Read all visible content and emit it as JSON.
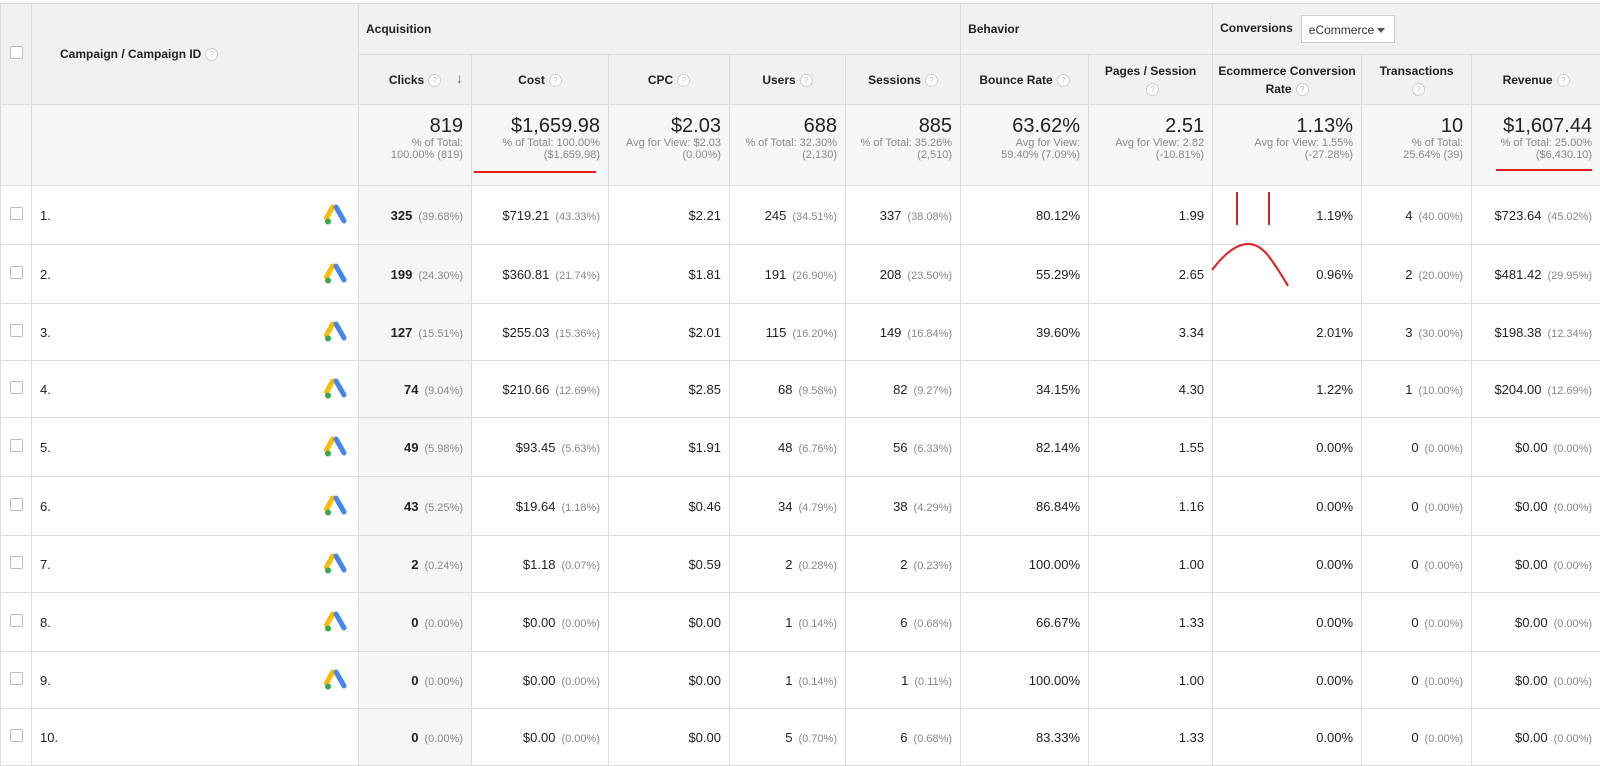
{
  "header": {
    "campaign_col": "Campaign / Campaign ID",
    "acquisition": "Acquisition",
    "behavior": "Behavior",
    "conversions": "Conversions",
    "conversion_select": "eCommerce",
    "help": "?",
    "columns": {
      "clicks": "Clicks",
      "cost": "Cost",
      "cpc": "CPC",
      "users": "Users",
      "sessions": "Sessions",
      "bounce": "Bounce Rate",
      "pages_line1": "Pages / Session",
      "ecr_line1": "Ecommerce Conversion",
      "ecr_line2": "Rate",
      "transactions": "Transactions",
      "revenue": "Revenue"
    }
  },
  "totals": {
    "clicks": {
      "big": "819",
      "sub1": "% of Total:",
      "sub2": "100.00% (819)"
    },
    "cost": {
      "big": "$1,659.98",
      "sub1": "% of Total: 100.00%",
      "sub2": "($1,659.98)"
    },
    "cpc": {
      "big": "$2.03",
      "sub1": "Avg for View: $2.03",
      "sub2": "(0.00%)"
    },
    "users": {
      "big": "688",
      "sub1": "% of Total: 32.30%",
      "sub2": "(2,130)"
    },
    "sessions": {
      "big": "885",
      "sub1": "% of Total: 35.26%",
      "sub2": "(2,510)"
    },
    "bounce": {
      "big": "63.62%",
      "sub1": "Avg for View:",
      "sub2": "59.40% (7.09%)"
    },
    "pages": {
      "big": "2.51",
      "sub1": "Avg for View: 2.82",
      "sub2": "(-10.81%)"
    },
    "ecr": {
      "big": "1.13%",
      "sub1": "Avg for View: 1.55%",
      "sub2": "(-27.28%)"
    },
    "transactions": {
      "big": "10",
      "sub1": "% of Total:",
      "sub2": "25.64% (39)"
    },
    "revenue": {
      "big": "$1,607.44",
      "sub1": "% of Total: 25.00%",
      "sub2": "($6,430.10)"
    }
  },
  "rows": [
    {
      "idx": "1.",
      "clicks": "325",
      "clicks_pct": "(39.68%)",
      "cost": "$719.21",
      "cost_pct": "(43.33%)",
      "cpc": "$2.21",
      "users": "245",
      "users_pct": "(34.51%)",
      "sessions": "337",
      "sessions_pct": "(38.08%)",
      "bounce": "80.12%",
      "pages": "1.99",
      "ecr": "1.19%",
      "trans": "4",
      "trans_pct": "(40.00%)",
      "rev": "$723.64",
      "rev_pct": "(45.02%)"
    },
    {
      "idx": "2.",
      "clicks": "199",
      "clicks_pct": "(24.30%)",
      "cost": "$360.81",
      "cost_pct": "(21.74%)",
      "cpc": "$1.81",
      "users": "191",
      "users_pct": "(26.90%)",
      "sessions": "208",
      "sessions_pct": "(23.50%)",
      "bounce": "55.29%",
      "pages": "2.65",
      "ecr": "0.96%",
      "trans": "2",
      "trans_pct": "(20.00%)",
      "rev": "$481.42",
      "rev_pct": "(29.95%)"
    },
    {
      "idx": "3.",
      "clicks": "127",
      "clicks_pct": "(15.51%)",
      "cost": "$255.03",
      "cost_pct": "(15.36%)",
      "cpc": "$2.01",
      "users": "115",
      "users_pct": "(16.20%)",
      "sessions": "149",
      "sessions_pct": "(16.84%)",
      "bounce": "39.60%",
      "pages": "3.34",
      "ecr": "2.01%",
      "trans": "3",
      "trans_pct": "(30.00%)",
      "rev": "$198.38",
      "rev_pct": "(12.34%)"
    },
    {
      "idx": "4.",
      "clicks": "74",
      "clicks_pct": "(9.04%)",
      "cost": "$210.66",
      "cost_pct": "(12.69%)",
      "cpc": "$2.85",
      "users": "68",
      "users_pct": "(9.58%)",
      "sessions": "82",
      "sessions_pct": "(9.27%)",
      "bounce": "34.15%",
      "pages": "4.30",
      "ecr": "1.22%",
      "trans": "1",
      "trans_pct": "(10.00%)",
      "rev": "$204.00",
      "rev_pct": "(12.69%)"
    },
    {
      "idx": "5.",
      "clicks": "49",
      "clicks_pct": "(5.98%)",
      "cost": "$93.45",
      "cost_pct": "(5.63%)",
      "cpc": "$1.91",
      "users": "48",
      "users_pct": "(6.76%)",
      "sessions": "56",
      "sessions_pct": "(6.33%)",
      "bounce": "82.14%",
      "pages": "1.55",
      "ecr": "0.00%",
      "trans": "0",
      "trans_pct": "(0.00%)",
      "rev": "$0.00",
      "rev_pct": "(0.00%)"
    },
    {
      "idx": "6.",
      "clicks": "43",
      "clicks_pct": "(5.25%)",
      "cost": "$19.64",
      "cost_pct": "(1.18%)",
      "cpc": "$0.46",
      "users": "34",
      "users_pct": "(4.79%)",
      "sessions": "38",
      "sessions_pct": "(4.29%)",
      "bounce": "86.84%",
      "pages": "1.16",
      "ecr": "0.00%",
      "trans": "0",
      "trans_pct": "(0.00%)",
      "rev": "$0.00",
      "rev_pct": "(0.00%)"
    },
    {
      "idx": "7.",
      "clicks": "2",
      "clicks_pct": "(0.24%)",
      "cost": "$1.18",
      "cost_pct": "(0.07%)",
      "cpc": "$0.59",
      "users": "2",
      "users_pct": "(0.28%)",
      "sessions": "2",
      "sessions_pct": "(0.23%)",
      "bounce": "100.00%",
      "pages": "1.00",
      "ecr": "0.00%",
      "trans": "0",
      "trans_pct": "(0.00%)",
      "rev": "$0.00",
      "rev_pct": "(0.00%)"
    },
    {
      "idx": "8.",
      "clicks": "0",
      "clicks_pct": "(0.00%)",
      "cost": "$0.00",
      "cost_pct": "(0.00%)",
      "cpc": "$0.00",
      "users": "1",
      "users_pct": "(0.14%)",
      "sessions": "6",
      "sessions_pct": "(0.68%)",
      "bounce": "66.67%",
      "pages": "1.33",
      "ecr": "0.00%",
      "trans": "0",
      "trans_pct": "(0.00%)",
      "rev": "$0.00",
      "rev_pct": "(0.00%)"
    },
    {
      "idx": "9.",
      "clicks": "0",
      "clicks_pct": "(0.00%)",
      "cost": "$0.00",
      "cost_pct": "(0.00%)",
      "cpc": "$0.00",
      "users": "1",
      "users_pct": "(0.14%)",
      "sessions": "1",
      "sessions_pct": "(0.11%)",
      "bounce": "100.00%",
      "pages": "1.00",
      "ecr": "0.00%",
      "trans": "0",
      "trans_pct": "(0.00%)",
      "rev": "$0.00",
      "rev_pct": "(0.00%)"
    },
    {
      "idx": "10.",
      "clicks": "0",
      "clicks_pct": "(0.00%)",
      "cost": "$0.00",
      "cost_pct": "(0.00%)",
      "cpc": "$0.00",
      "users": "5",
      "users_pct": "(0.70%)",
      "sessions": "6",
      "sessions_pct": "(0.68%)",
      "bounce": "83.33%",
      "pages": "1.33",
      "ecr": "0.00%",
      "trans": "0",
      "trans_pct": "(0.00%)",
      "rev": "$0.00",
      "rev_pct": "(0.00%)"
    }
  ],
  "icons": {
    "row_icon": "google-ads-icon",
    "sort": "arrow-down-icon",
    "help": "help-circle-icon"
  },
  "colors": {
    "annotation": "#e02020",
    "ads_blue": "#4285F4",
    "ads_yellow": "#FBBC04",
    "ads_green": "#34A853",
    "header_bg": "#f1f1f1"
  }
}
